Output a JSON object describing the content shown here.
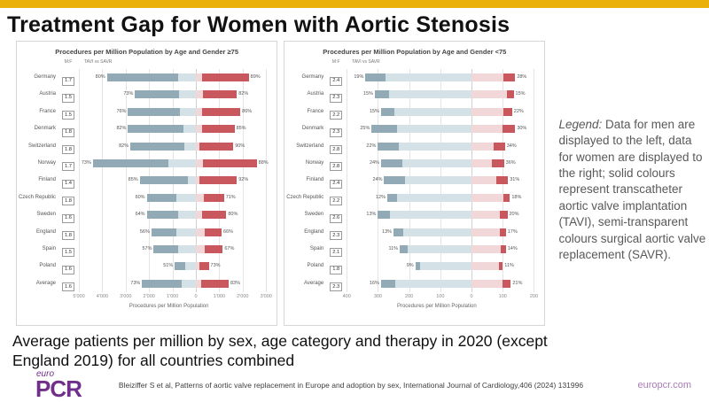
{
  "slide": {
    "title": "Treatment Gap for Women with Aortic Stenosis",
    "caption": "Average patients per million by sex, age category and therapy in 2020 (except England 2019) for all countries combined",
    "citation": "Bleiziffer S et al, Patterns of aortic valve replacement in Europe and adoption by sex, International Journal of Cardiology,406 (2024) 131996",
    "website": "europcr.com",
    "logo": {
      "top": "euro",
      "main": "PCR"
    }
  },
  "legend": {
    "label": "Legend:",
    "text": " Data for men are displayed to the left, data for women are displayed to the right; solid colours represent transcatheter aortic valve implantation (TAVI), semi-transparent colours surgical aortic valve replacement (SAVR)."
  },
  "colors": {
    "accent_yellow": "#e9b109",
    "men_tavi_solid": "#92aab6",
    "men_savr_light": "#d4e1e7",
    "women_tavi_solid": "#c8575e",
    "women_savr_light": "#f2d7d8",
    "brand_purple": "#702f8a",
    "link_purple": "#a87bb5"
  },
  "chart_data": [
    {
      "type": "bar",
      "subtype": "diverging-stacked-horizontal",
      "title": "Procedures per Million Population by Age and Gender ≥75",
      "xlabel": "Procedures per Million Population",
      "col_headers": {
        "ratio": "M:F",
        "bars": "TAVI vs SAVR"
      },
      "legend_note": "left=men, right=women; solid=TAVI, light=SAVR; boxed value=M:F ratio; % = TAVI share",
      "axis": {
        "left_max": 5000,
        "right_max": 3000,
        "tick_values": [
          -5000,
          -4000,
          -3000,
          -2000,
          -1000,
          0,
          1000,
          2000,
          3000
        ],
        "tick_labels": [
          "5'000",
          "4'000",
          "3'000",
          "2'000",
          "1'000",
          "0",
          "1'000",
          "2'000",
          "3'000"
        ]
      },
      "categories": [
        "Germany",
        "Austria",
        "France",
        "Denmark",
        "Switzerland",
        "Norway",
        "Finland",
        "Czech Republic",
        "Sweden",
        "England",
        "Spain",
        "Poland",
        "Average"
      ],
      "rows": [
        {
          "country": "Germany",
          "ratio": "1.7",
          "men_pct": 80,
          "women_pct": 89,
          "men_total": 3800,
          "women_total": 2260
        },
        {
          "country": "Austria",
          "ratio": "1.5",
          "men_pct": 73,
          "women_pct": 82,
          "men_total": 2600,
          "women_total": 1750
        },
        {
          "country": "France",
          "ratio": "1.5",
          "men_pct": 76,
          "women_pct": 86,
          "men_total": 2900,
          "women_total": 1900
        },
        {
          "country": "Denmark",
          "ratio": "1.8",
          "men_pct": 82,
          "women_pct": 85,
          "men_total": 2900,
          "women_total": 1650
        },
        {
          "country": "Switzerland",
          "ratio": "1.8",
          "men_pct": 82,
          "women_pct": 90,
          "men_total": 2800,
          "women_total": 1600
        },
        {
          "country": "Norway",
          "ratio": "1.7",
          "men_pct": 73,
          "women_pct": 88,
          "men_total": 4400,
          "women_total": 2600
        },
        {
          "country": "Finland",
          "ratio": "1.4",
          "men_pct": 85,
          "women_pct": 92,
          "men_total": 2400,
          "women_total": 1750
        },
        {
          "country": "Czech Republic",
          "ratio": "1.8",
          "men_pct": 60,
          "women_pct": 71,
          "men_total": 2100,
          "women_total": 1200
        },
        {
          "country": "Sweden",
          "ratio": "1.6",
          "men_pct": 64,
          "women_pct": 80,
          "men_total": 2100,
          "women_total": 1300
        },
        {
          "country": "England",
          "ratio": "1.8",
          "men_pct": 56,
          "women_pct": 66,
          "men_total": 1900,
          "women_total": 1100
        },
        {
          "country": "Spain",
          "ratio": "1.5",
          "men_pct": 57,
          "women_pct": 67,
          "men_total": 1800,
          "women_total": 1150
        },
        {
          "country": "Poland",
          "ratio": "1.6",
          "men_pct": 51,
          "women_pct": 73,
          "men_total": 900,
          "women_total": 550
        },
        {
          "country": "Average",
          "ratio": "1.6",
          "men_pct": 73,
          "women_pct": 83,
          "men_total": 2300,
          "women_total": 1400
        }
      ]
    },
    {
      "type": "bar",
      "subtype": "diverging-stacked-horizontal",
      "title": "Procedures per Million Population by Age and Gender <75",
      "xlabel": "Procedures per Million Population",
      "col_headers": {
        "ratio": "M:F",
        "bars": "TAVI vs SAVR"
      },
      "legend_note": "left=men, right=women; solid=TAVI, light=SAVR; boxed value=M:F ratio; % = TAVI share",
      "axis": {
        "left_max": 400,
        "right_max": 200,
        "tick_values": [
          -400,
          -300,
          -200,
          -100,
          0,
          100,
          200
        ],
        "tick_labels": [
          "400",
          "300",
          "200",
          "100",
          "0",
          "100",
          "200"
        ]
      },
      "categories": [
        "Germany",
        "Austria",
        "France",
        "Denmark",
        "Switzerland",
        "Norway",
        "Finland",
        "Czech Republic",
        "Sweden",
        "England",
        "Spain",
        "Poland",
        "Average"
      ],
      "rows": [
        {
          "country": "Germany",
          "ratio": "2.4",
          "men_pct": 19,
          "women_pct": 28,
          "men_total": 340,
          "women_total": 140
        },
        {
          "country": "Austria",
          "ratio": "2.3",
          "men_pct": 15,
          "women_pct": 15,
          "men_total": 310,
          "women_total": 135
        },
        {
          "country": "France",
          "ratio": "2.2",
          "men_pct": 15,
          "women_pct": 22,
          "men_total": 290,
          "women_total": 130
        },
        {
          "country": "Denmark",
          "ratio": "2.3",
          "men_pct": 25,
          "women_pct": 30,
          "men_total": 320,
          "women_total": 140
        },
        {
          "country": "Switzerland",
          "ratio": "2.8",
          "men_pct": 22,
          "women_pct": 34,
          "men_total": 300,
          "women_total": 107
        },
        {
          "country": "Norway",
          "ratio": "2.8",
          "men_pct": 24,
          "women_pct": 36,
          "men_total": 290,
          "women_total": 104
        },
        {
          "country": "Finland",
          "ratio": "2.4",
          "men_pct": 24,
          "women_pct": 31,
          "men_total": 280,
          "women_total": 117
        },
        {
          "country": "Czech Republic",
          "ratio": "2.2",
          "men_pct": 12,
          "women_pct": 18,
          "men_total": 270,
          "women_total": 123
        },
        {
          "country": "Sweden",
          "ratio": "2.6",
          "men_pct": 13,
          "women_pct": 20,
          "men_total": 300,
          "women_total": 115
        },
        {
          "country": "England",
          "ratio": "2.3",
          "men_pct": 13,
          "women_pct": 17,
          "men_total": 250,
          "women_total": 110
        },
        {
          "country": "Spain",
          "ratio": "2.1",
          "men_pct": 11,
          "women_pct": 14,
          "men_total": 230,
          "women_total": 110
        },
        {
          "country": "Poland",
          "ratio": "1.8",
          "men_pct": 9,
          "women_pct": 11,
          "men_total": 180,
          "women_total": 100
        },
        {
          "country": "Average",
          "ratio": "2.3",
          "men_pct": 16,
          "women_pct": 21,
          "men_total": 290,
          "women_total": 126
        }
      ]
    }
  ]
}
